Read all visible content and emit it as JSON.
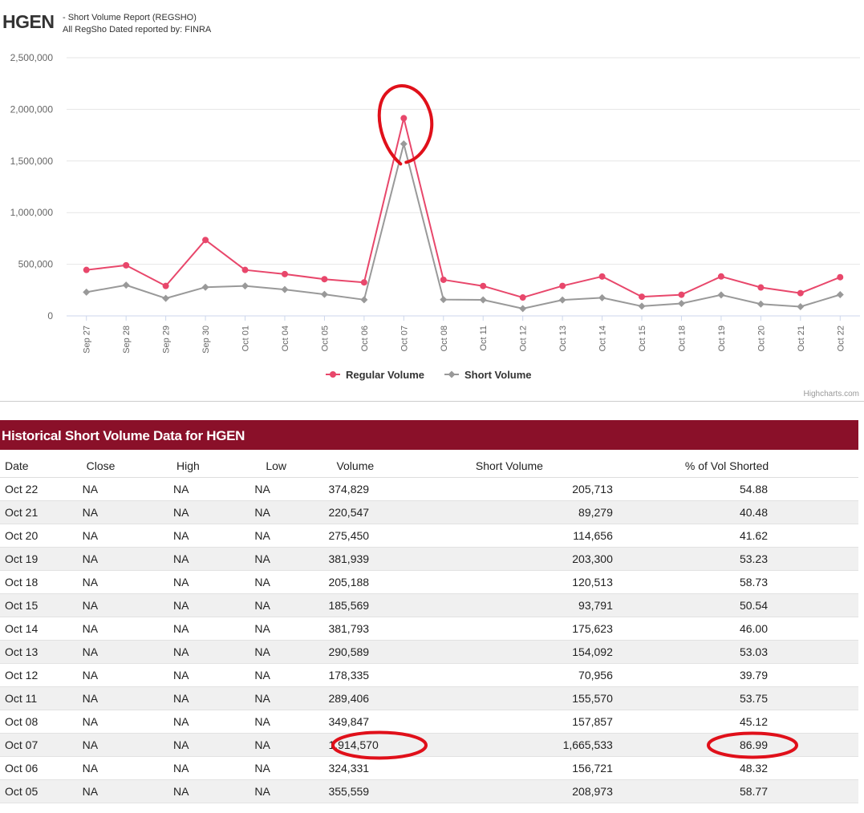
{
  "header": {
    "ticker": "HGEN",
    "subtitle_line1": "- Short Volume Report  (REGSHO)",
    "subtitle_line2": "All RegSho Dated reported by: FINRA"
  },
  "chart_data": {
    "type": "line",
    "categories": [
      "Sep 27",
      "Sep 28",
      "Sep 29",
      "Sep 30",
      "Oct 01",
      "Oct 04",
      "Oct 05",
      "Oct 06",
      "Oct 07",
      "Oct 08",
      "Oct 11",
      "Oct 12",
      "Oct 13",
      "Oct 14",
      "Oct 15",
      "Oct 18",
      "Oct 19",
      "Oct 20",
      "Oct 21",
      "Oct 22"
    ],
    "y_ticks": [
      "0",
      "500,000",
      "1,000,000",
      "1,500,000",
      "2,000,000",
      "2,500,000"
    ],
    "ylim": [
      0,
      2500000
    ],
    "grid": true,
    "legend_position": "bottom-center",
    "series": [
      {
        "name": "Regular Volume",
        "color": "#e8476b",
        "marker": "circle",
        "values": [
          445000,
          490000,
          290000,
          735000,
          445000,
          405000,
          355559,
          324331,
          1914570,
          349847,
          289406,
          178335,
          290589,
          381793,
          185569,
          205188,
          381939,
          275450,
          220547,
          374829
        ]
      },
      {
        "name": "Short Volume",
        "color": "#999999",
        "marker": "diamond",
        "values": [
          230000,
          298000,
          170000,
          278000,
          290000,
          255000,
          208973,
          156721,
          1665533,
          157857,
          155570,
          70956,
          154092,
          175623,
          93791,
          120513,
          203300,
          114656,
          89279,
          205713
        ]
      }
    ],
    "credits": "Highcharts.com"
  },
  "table": {
    "title": "Historical Short Volume Data for HGEN",
    "columns": [
      "Date",
      "Close",
      "High",
      "Low",
      "Volume",
      "Short Volume",
      "% of Vol Shorted"
    ],
    "rows": [
      [
        "Oct 22",
        "NA",
        "NA",
        "NA",
        "374,829",
        "205,713",
        "54.88"
      ],
      [
        "Oct 21",
        "NA",
        "NA",
        "NA",
        "220,547",
        "89,279",
        "40.48"
      ],
      [
        "Oct 20",
        "NA",
        "NA",
        "NA",
        "275,450",
        "114,656",
        "41.62"
      ],
      [
        "Oct 19",
        "NA",
        "NA",
        "NA",
        "381,939",
        "203,300",
        "53.23"
      ],
      [
        "Oct 18",
        "NA",
        "NA",
        "NA",
        "205,188",
        "120,513",
        "58.73"
      ],
      [
        "Oct 15",
        "NA",
        "NA",
        "NA",
        "185,569",
        "93,791",
        "50.54"
      ],
      [
        "Oct 14",
        "NA",
        "NA",
        "NA",
        "381,793",
        "175,623",
        "46.00"
      ],
      [
        "Oct 13",
        "NA",
        "NA",
        "NA",
        "290,589",
        "154,092",
        "53.03"
      ],
      [
        "Oct 12",
        "NA",
        "NA",
        "NA",
        "178,335",
        "70,956",
        "39.79"
      ],
      [
        "Oct 11",
        "NA",
        "NA",
        "NA",
        "289,406",
        "155,570",
        "53.75"
      ],
      [
        "Oct 08",
        "NA",
        "NA",
        "NA",
        "349,847",
        "157,857",
        "45.12"
      ],
      [
        "Oct 07",
        "NA",
        "NA",
        "NA",
        "1,914,570",
        "1,665,533",
        "86.99"
      ],
      [
        "Oct 06",
        "NA",
        "NA",
        "NA",
        "324,331",
        "156,721",
        "48.32"
      ],
      [
        "Oct 05",
        "NA",
        "NA",
        "NA",
        "355,559",
        "208,973",
        "58.77"
      ]
    ]
  },
  "annotation_color": "#e0101a"
}
